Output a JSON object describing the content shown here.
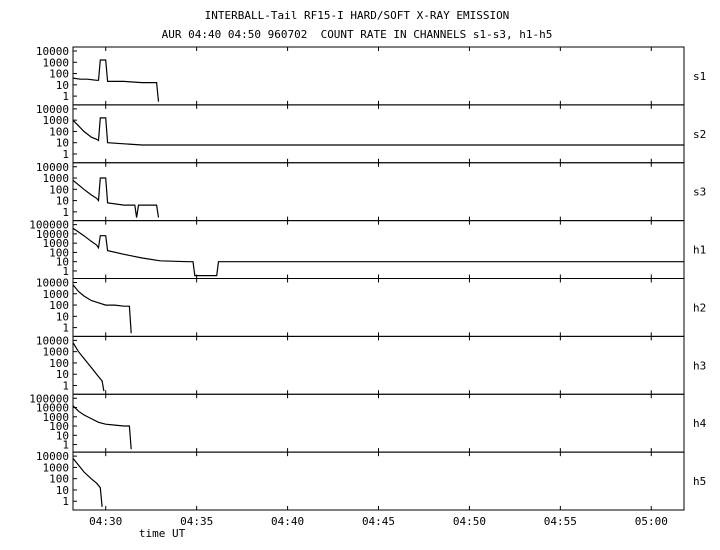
{
  "chart_data": {
    "type": "line",
    "title": "INTERBALL-Tail RF15-I HARD/SOFT X-RAY EMISSION",
    "subtitle": "AUR 04:40 04:50 960702  COUNT RATE IN CHANNELS s1-s3, h1-h5",
    "xlabel": "time UT",
    "x_ticks": [
      "04:30",
      "04:35",
      "04:40",
      "04:45",
      "04:50",
      "04:55",
      "05:00"
    ],
    "x_tick_minutes": [
      30,
      35,
      40,
      45,
      50,
      55,
      60
    ],
    "xlim_minutes": [
      28.2,
      61.8
    ],
    "y_scale": "log",
    "grid": false,
    "panels": [
      {
        "name": "s1",
        "ylim_log": [
          -0.6,
          4
        ],
        "ticks": [
          {
            "l": "10000",
            "v": 4
          },
          {
            "l": "1000",
            "v": 3
          },
          {
            "l": "100",
            "v": 2
          },
          {
            "l": "10",
            "v": 1
          },
          {
            "l": "1",
            "v": 0
          }
        ],
        "series": [
          [
            28.2,
            1.6
          ],
          [
            28.6,
            1.5
          ],
          [
            29.0,
            1.5
          ],
          [
            29.5,
            1.4
          ],
          [
            29.6,
            1.4
          ],
          [
            29.7,
            3.2
          ],
          [
            30.0,
            3.2
          ],
          [
            30.1,
            1.3
          ],
          [
            31.0,
            1.3
          ],
          [
            32.0,
            1.2
          ],
          [
            32.8,
            1.2
          ],
          [
            32.9,
            -0.5
          ]
        ]
      },
      {
        "name": "s2",
        "ylim_log": [
          -0.6,
          4
        ],
        "ticks": [
          {
            "l": "10000",
            "v": 4
          },
          {
            "l": "1000",
            "v": 3
          },
          {
            "l": "100",
            "v": 2
          },
          {
            "l": "10",
            "v": 1
          },
          {
            "l": "1",
            "v": 0
          }
        ],
        "series": [
          [
            28.2,
            3.0
          ],
          [
            28.5,
            2.5
          ],
          [
            28.8,
            2.0
          ],
          [
            29.2,
            1.5
          ],
          [
            29.5,
            1.3
          ],
          [
            29.6,
            1.2
          ],
          [
            29.7,
            3.2
          ],
          [
            30.0,
            3.2
          ],
          [
            30.1,
            1.0
          ],
          [
            31.0,
            0.9
          ],
          [
            32.0,
            0.8
          ],
          [
            35.0,
            0.8
          ],
          [
            45.0,
            0.8
          ],
          [
            55.0,
            0.8
          ],
          [
            61.8,
            0.8
          ]
        ]
      },
      {
        "name": "s3",
        "ylim_log": [
          -0.6,
          4
        ],
        "ticks": [
          {
            "l": "10000",
            "v": 4
          },
          {
            "l": "1000",
            "v": 3
          },
          {
            "l": "100",
            "v": 2
          },
          {
            "l": "10",
            "v": 1
          },
          {
            "l": "1",
            "v": 0
          }
        ],
        "series": [
          [
            28.2,
            2.8
          ],
          [
            28.5,
            2.4
          ],
          [
            28.8,
            2.0
          ],
          [
            29.2,
            1.5
          ],
          [
            29.5,
            1.2
          ],
          [
            29.6,
            1.0
          ],
          [
            29.7,
            3.0
          ],
          [
            30.0,
            3.0
          ],
          [
            30.1,
            0.8
          ],
          [
            31.0,
            0.6
          ],
          [
            31.6,
            0.6
          ],
          [
            31.7,
            -0.5
          ],
          [
            31.8,
            0.6
          ],
          [
            32.8,
            0.6
          ],
          [
            32.9,
            -0.5
          ]
        ]
      },
      {
        "name": "h1",
        "ylim_log": [
          -0.6,
          5
        ],
        "ticks": [
          {
            "l": "100000",
            "v": 5
          },
          {
            "l": "10000",
            "v": 4
          },
          {
            "l": "1000",
            "v": 3
          },
          {
            "l": "100",
            "v": 2
          },
          {
            "l": "10",
            "v": 1
          },
          {
            "l": "1",
            "v": 0
          }
        ],
        "series": [
          [
            28.2,
            4.6
          ],
          [
            28.5,
            4.2
          ],
          [
            28.8,
            3.8
          ],
          [
            29.2,
            3.2
          ],
          [
            29.5,
            2.8
          ],
          [
            29.6,
            2.5
          ],
          [
            29.7,
            3.8
          ],
          [
            30.0,
            3.8
          ],
          [
            30.1,
            2.2
          ],
          [
            31.0,
            1.8
          ],
          [
            32.0,
            1.4
          ],
          [
            33.0,
            1.1
          ],
          [
            34.5,
            1.0
          ],
          [
            34.8,
            1.0
          ],
          [
            34.9,
            -0.5
          ],
          [
            36.1,
            -0.5
          ],
          [
            36.2,
            1.0
          ],
          [
            45.0,
            1.0
          ],
          [
            55.0,
            1.0
          ],
          [
            61.8,
            1.0
          ]
        ]
      },
      {
        "name": "h2",
        "ylim_log": [
          -0.6,
          4
        ],
        "ticks": [
          {
            "l": "10000",
            "v": 4
          },
          {
            "l": "1000",
            "v": 3
          },
          {
            "l": "100",
            "v": 2
          },
          {
            "l": "10",
            "v": 1
          },
          {
            "l": "1",
            "v": 0
          }
        ],
        "series": [
          [
            28.2,
            3.8
          ],
          [
            28.5,
            3.2
          ],
          [
            28.8,
            2.8
          ],
          [
            29.2,
            2.4
          ],
          [
            29.6,
            2.2
          ],
          [
            30.0,
            2.0
          ],
          [
            30.5,
            2.0
          ],
          [
            31.0,
            1.9
          ],
          [
            31.3,
            1.9
          ],
          [
            31.4,
            -0.5
          ]
        ]
      },
      {
        "name": "h3",
        "ylim_log": [
          -0.6,
          4
        ],
        "ticks": [
          {
            "l": "10000",
            "v": 4
          },
          {
            "l": "1000",
            "v": 3
          },
          {
            "l": "100",
            "v": 2
          },
          {
            "l": "10",
            "v": 1
          },
          {
            "l": "1",
            "v": 0
          }
        ],
        "series": [
          [
            28.2,
            3.8
          ],
          [
            28.5,
            3.0
          ],
          [
            28.8,
            2.4
          ],
          [
            29.2,
            1.6
          ],
          [
            29.5,
            1.0
          ],
          [
            29.8,
            0.4
          ],
          [
            29.9,
            -0.5
          ]
        ]
      },
      {
        "name": "h4",
        "ylim_log": [
          -0.6,
          5
        ],
        "ticks": [
          {
            "l": "100000",
            "v": 5
          },
          {
            "l": "10000",
            "v": 4
          },
          {
            "l": "1000",
            "v": 3
          },
          {
            "l": "100",
            "v": 2
          },
          {
            "l": "10",
            "v": 1
          },
          {
            "l": "1",
            "v": 0
          }
        ],
        "series": [
          [
            28.2,
            4.2
          ],
          [
            28.5,
            3.6
          ],
          [
            28.8,
            3.2
          ],
          [
            29.2,
            2.8
          ],
          [
            29.6,
            2.4
          ],
          [
            30.0,
            2.2
          ],
          [
            30.5,
            2.1
          ],
          [
            31.0,
            2.0
          ],
          [
            31.3,
            2.0
          ],
          [
            31.4,
            -0.5
          ]
        ]
      },
      {
        "name": "h5",
        "ylim_log": [
          -0.6,
          4
        ],
        "ticks": [
          {
            "l": "10000",
            "v": 4
          },
          {
            "l": "1000",
            "v": 3
          },
          {
            "l": "100",
            "v": 2
          },
          {
            "l": "10",
            "v": 1
          },
          {
            "l": "1",
            "v": 0
          }
        ],
        "series": [
          [
            28.2,
            3.8
          ],
          [
            28.5,
            3.2
          ],
          [
            28.8,
            2.6
          ],
          [
            29.2,
            2.0
          ],
          [
            29.5,
            1.6
          ],
          [
            29.7,
            1.2
          ],
          [
            29.8,
            -0.5
          ]
        ]
      }
    ]
  }
}
